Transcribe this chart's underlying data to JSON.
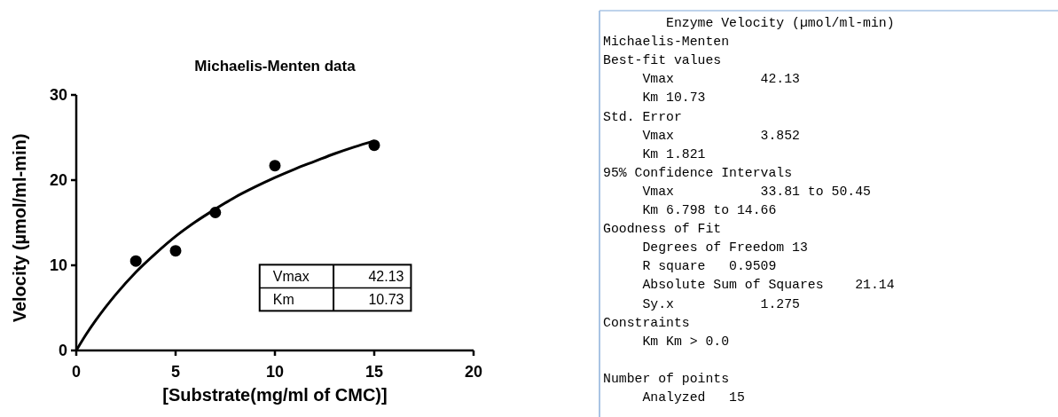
{
  "chart_data": [
    {
      "type": "scatter",
      "title": "Michaelis-Menten data",
      "xlabel": "[Substrate(mg/ml  of CMC)]",
      "ylabel": "Velocity (µmol/ml-min)",
      "xlim": [
        0,
        20
      ],
      "xticks": [
        0,
        5,
        10,
        15,
        20
      ],
      "ylim": [
        0,
        30
      ],
      "yticks": [
        0,
        10,
        20,
        30
      ],
      "annotations": [
        "Vmax",
        "42.13",
        "Km",
        "10.73"
      ],
      "series": [
        {
          "type": "scatter",
          "marker": "circle",
          "color": "#000000",
          "x": [
            3,
            5,
            7,
            10,
            15
          ],
          "values": [
            10.5,
            11.7,
            16.2,
            21.7,
            24.1
          ]
        },
        {
          "type": "line",
          "marker": "none",
          "line_style": "solid",
          "color": "#000000",
          "x": [
            0,
            0.5,
            1,
            2,
            3,
            4,
            5,
            6,
            7,
            8,
            9,
            10,
            11,
            12,
            13,
            14,
            15
          ],
          "values": [
            0,
            1.9,
            3.6,
            6.6,
            9.2,
            11.4,
            13.4,
            15.1,
            16.6,
            18.0,
            19.2,
            20.3,
            21.3,
            22.2,
            23.1,
            23.9,
            24.6
          ]
        }
      ]
    },
    {
      "type": "other",
      "title": "        Enzyme Velocity (µmol/ml-min)",
      "annotations": [
        "Michaelis-Menten",
        "Best-fit values",
        "     Vmax           42.13",
        "     Km 10.73",
        "Std. Error",
        "     Vmax           3.852",
        "     Km 1.821",
        "95% Confidence Intervals",
        "     Vmax           33.81 to 50.45",
        "     Km 6.798 to 14.66",
        "Goodness of Fit",
        "     Degrees of Freedom 13",
        "     R square   0.9509",
        "     Absolute Sum of Squares    21.14",
        "     Sy.x           1.275",
        "Constraints",
        "     Km Km > 0.0",
        "Number of points",
        "     Analyzed   15"
      ]
    }
  ]
}
